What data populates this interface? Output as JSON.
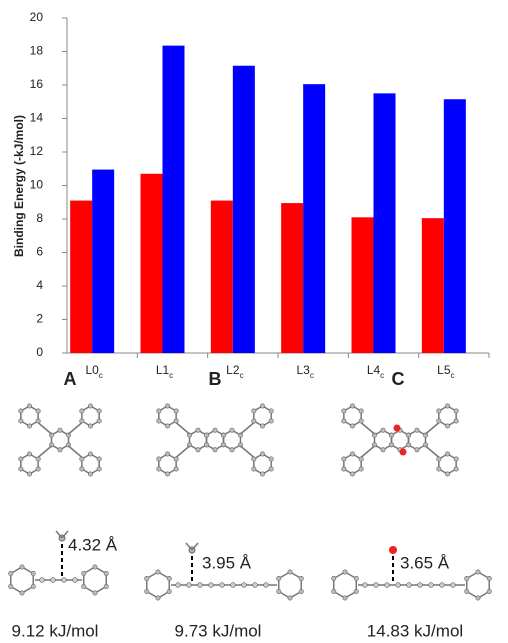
{
  "chart_data": {
    "type": "bar",
    "y_label": "Binding Energy (-kJ/mol)",
    "categories": [
      "L0c",
      "L1c",
      "L2c",
      "L3c",
      "L4c",
      "L5c"
    ],
    "series": [
      {
        "color": "#ff0000",
        "values": [
          9.1,
          10.7,
          9.1,
          8.95,
          8.1,
          8.05
        ]
      },
      {
        "color": "#0000ff",
        "values": [
          10.95,
          18.35,
          17.15,
          16.05,
          15.5,
          15.15
        ]
      }
    ],
    "ylim": [
      0,
      20
    ],
    "yticks": [
      0,
      2,
      4,
      6,
      8,
      10,
      12,
      14,
      16,
      18,
      20
    ],
    "grid": false
  },
  "panels": [
    {
      "label": "A",
      "distance": "4.32 Å",
      "energy": "9.12 kJ/mol"
    },
    {
      "label": "B",
      "distance": "3.95 Å",
      "energy": "9.73 kJ/mol"
    },
    {
      "label": "C",
      "distance": "3.65 Å",
      "energy": "14.83 kJ/mol"
    }
  ]
}
